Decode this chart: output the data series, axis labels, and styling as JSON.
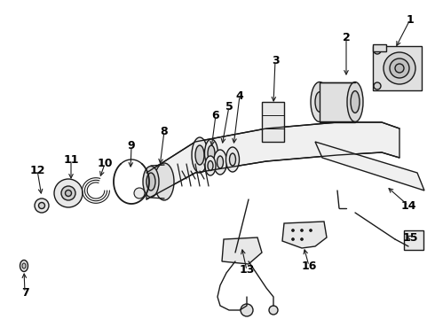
{
  "bg_color": "#ffffff",
  "line_color": "#1a1a1a",
  "label_color": "#000000",
  "fig_width": 4.9,
  "fig_height": 3.6,
  "dpi": 100,
  "label_fontsize": 9,
  "lw": 1.0
}
